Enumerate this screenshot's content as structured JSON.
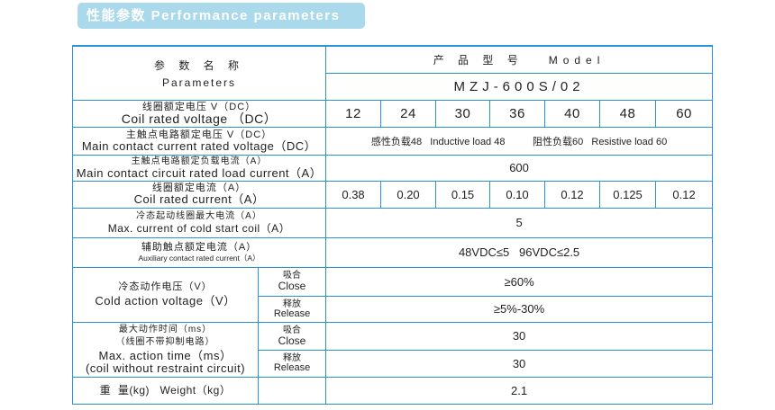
{
  "banner": {
    "title": "性能参数 Performance parameters"
  },
  "header": {
    "param_cn": "参 数 名 称",
    "param_en": "Parameters",
    "model_label": "产 品 型 号   Model",
    "model_value": "MZJ-600S/02"
  },
  "rows": {
    "coil_voltage": {
      "cn": "线圈额定电压 V（DC）",
      "en": "Coil rated voltage （DC）",
      "values": [
        "12",
        "24",
        "30",
        "36",
        "40",
        "48",
        "60"
      ]
    },
    "main_voltage": {
      "cn": "主触点电路额定电压 V（DC）",
      "en": "Main contact current rated voltage（DC）",
      "value": "感性负载48   Inductive load 48          阻性负载60   Resistive load 60"
    },
    "main_current": {
      "cn": "主触点电路额定负载电流（A）",
      "en": "Main contact circuit rated load current（A）",
      "value": "600"
    },
    "coil_current": {
      "cn": "线圈额定电流（A）",
      "en": "Coil rated current（A）",
      "values": [
        "0.38",
        "0.20",
        "0.15",
        "0.10",
        "0.12",
        "0.125",
        "0.12"
      ]
    },
    "cold_start": {
      "cn": "冷态起动线圈最大电流（A）",
      "en": "Max. current of cold start coil（A）",
      "value": "5"
    },
    "aux_current": {
      "cn": "辅助触点额定电流（A）",
      "en": "Auxiliary contact rated current（A）",
      "value": "48VDC≤5   96VDC≤2.5"
    },
    "cold_action": {
      "cn": "冷态动作电压（V）",
      "en": "Cold action voltage（V）",
      "close_cn": "吸合",
      "close_en": "Close",
      "close_value": "≥60%",
      "release_cn": "释放",
      "release_en": "Release",
      "release_value": "≥5%-30%"
    },
    "action_time": {
      "cn": "最大动作时间（ms）",
      "cn2": "（线圈不带抑制电路）",
      "en": "Max. action time（ms）",
      "en2": "(coil without restraint circuit)",
      "close_cn": "吸合",
      "close_en": "Close",
      "close_value": "30",
      "release_cn": "释放",
      "release_en": "Release",
      "release_value": "30"
    },
    "weight": {
      "label": "重  量(kg)   Weight（kg）",
      "value": "2.1"
    }
  }
}
